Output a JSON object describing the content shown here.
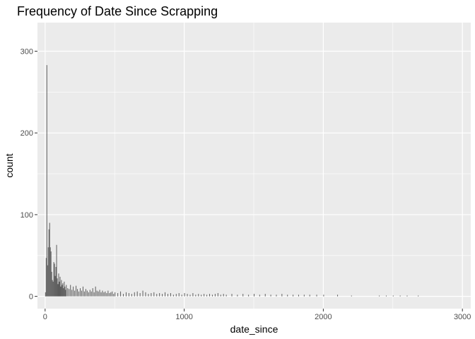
{
  "chart_data": {
    "type": "bar",
    "title": "Frequency of Date Since Scrapping",
    "xlabel": "date_since",
    "ylabel": "count",
    "xlim": [
      -55,
      3060
    ],
    "ylim": [
      -15,
      335
    ],
    "x_ticks": [
      {
        "value": 0,
        "label": "0"
      },
      {
        "value": 1000,
        "label": "1000"
      },
      {
        "value": 2000,
        "label": "2000"
      },
      {
        "value": 3000,
        "label": "3000"
      }
    ],
    "y_ticks": [
      {
        "value": 0,
        "label": "0"
      },
      {
        "value": 100,
        "label": "100"
      },
      {
        "value": 200,
        "label": "200"
      },
      {
        "value": 300,
        "label": "300"
      }
    ],
    "grid": true,
    "bin_width": 5,
    "bar_color": "#595959",
    "panel_color": "#ebebeb",
    "bins": [
      [
        0,
        5
      ],
      [
        5,
        47
      ],
      [
        10,
        283
      ],
      [
        15,
        38
      ],
      [
        20,
        60
      ],
      [
        25,
        82
      ],
      [
        30,
        90
      ],
      [
        35,
        60
      ],
      [
        40,
        55
      ],
      [
        45,
        30
      ],
      [
        50,
        20
      ],
      [
        55,
        18
      ],
      [
        60,
        42
      ],
      [
        65,
        40
      ],
      [
        70,
        25
      ],
      [
        75,
        36
      ],
      [
        80,
        63
      ],
      [
        85,
        22
      ],
      [
        90,
        15
      ],
      [
        95,
        28
      ],
      [
        100,
        18
      ],
      [
        105,
        24
      ],
      [
        110,
        12
      ],
      [
        115,
        20
      ],
      [
        120,
        14
      ],
      [
        125,
        16
      ],
      [
        130,
        10
      ],
      [
        135,
        18
      ],
      [
        140,
        12
      ],
      [
        145,
        8
      ],
      [
        150,
        14
      ],
      [
        160,
        10
      ],
      [
        170,
        9
      ],
      [
        180,
        14
      ],
      [
        190,
        8
      ],
      [
        200,
        12
      ],
      [
        210,
        7
      ],
      [
        220,
        13
      ],
      [
        230,
        9
      ],
      [
        240,
        6
      ],
      [
        250,
        10
      ],
      [
        260,
        7
      ],
      [
        270,
        12
      ],
      [
        280,
        6
      ],
      [
        290,
        9
      ],
      [
        300,
        7
      ],
      [
        310,
        5
      ],
      [
        320,
        8
      ],
      [
        330,
        6
      ],
      [
        340,
        10
      ],
      [
        350,
        5
      ],
      [
        360,
        12
      ],
      [
        370,
        7
      ],
      [
        380,
        6
      ],
      [
        390,
        8
      ],
      [
        400,
        5
      ],
      [
        410,
        7
      ],
      [
        420,
        5
      ],
      [
        430,
        6
      ],
      [
        440,
        4
      ],
      [
        450,
        7
      ],
      [
        460,
        4
      ],
      [
        470,
        5
      ],
      [
        480,
        6
      ],
      [
        490,
        3
      ],
      [
        500,
        5
      ],
      [
        520,
        4
      ],
      [
        540,
        6
      ],
      [
        560,
        3
      ],
      [
        580,
        5
      ],
      [
        600,
        4
      ],
      [
        620,
        3
      ],
      [
        640,
        5
      ],
      [
        660,
        6
      ],
      [
        680,
        4
      ],
      [
        700,
        7
      ],
      [
        720,
        5
      ],
      [
        740,
        3
      ],
      [
        760,
        4
      ],
      [
        780,
        5
      ],
      [
        800,
        3
      ],
      [
        820,
        4
      ],
      [
        840,
        3
      ],
      [
        860,
        5
      ],
      [
        880,
        3
      ],
      [
        900,
        4
      ],
      [
        920,
        2
      ],
      [
        940,
        3
      ],
      [
        960,
        4
      ],
      [
        980,
        2
      ],
      [
        1000,
        4
      ],
      [
        1020,
        3
      ],
      [
        1040,
        2
      ],
      [
        1060,
        4
      ],
      [
        1080,
        2
      ],
      [
        1100,
        3
      ],
      [
        1120,
        2
      ],
      [
        1140,
        3
      ],
      [
        1160,
        2
      ],
      [
        1180,
        3
      ],
      [
        1200,
        2
      ],
      [
        1220,
        3
      ],
      [
        1240,
        4
      ],
      [
        1260,
        2
      ],
      [
        1280,
        3
      ],
      [
        1300,
        2
      ],
      [
        1340,
        3
      ],
      [
        1380,
        2
      ],
      [
        1420,
        3
      ],
      [
        1460,
        2
      ],
      [
        1500,
        3
      ],
      [
        1540,
        2
      ],
      [
        1580,
        3
      ],
      [
        1620,
        2
      ],
      [
        1660,
        2
      ],
      [
        1700,
        3
      ],
      [
        1740,
        2
      ],
      [
        1780,
        2
      ],
      [
        1820,
        2
      ],
      [
        1860,
        2
      ],
      [
        1900,
        2
      ],
      [
        1950,
        2
      ],
      [
        2000,
        2
      ],
      [
        2100,
        2
      ],
      [
        2200,
        1
      ],
      [
        2400,
        1
      ],
      [
        2450,
        1
      ],
      [
        2500,
        1
      ],
      [
        2550,
        1
      ],
      [
        2600,
        1
      ],
      [
        2680,
        1
      ]
    ]
  }
}
